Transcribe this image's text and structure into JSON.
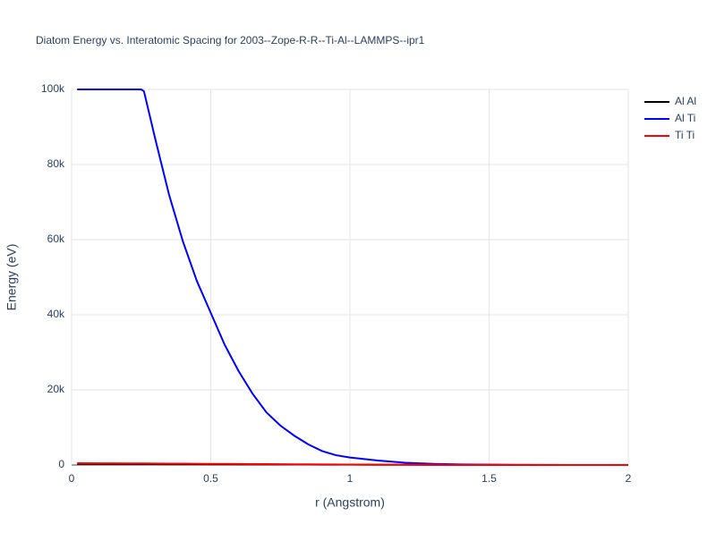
{
  "chart_data": {
    "type": "line",
    "title": "Diatom Energy vs. Interatomic Spacing for 2003--Zope-R-R--Ti-Al--LAMMPS--ipr1",
    "x_label": "r (Angstrom)",
    "y_label": "Energy (eV)",
    "x": [
      0.02,
      0.1,
      0.2,
      0.25,
      0.26,
      0.3,
      0.35,
      0.4,
      0.45,
      0.5,
      0.55,
      0.6,
      0.65,
      0.7,
      0.75,
      0.8,
      0.85,
      0.9,
      0.95,
      1,
      1.1,
      1.2,
      1.3,
      1.4,
      1.5,
      1.6,
      1.8,
      2
    ],
    "series": [
      {
        "name": "Al Al",
        "color": "#000000",
        "values": [
          300,
          280,
          260,
          250,
          245,
          235,
          220,
          210,
          195,
          185,
          170,
          160,
          150,
          140,
          125,
          115,
          105,
          95,
          85,
          75,
          60,
          45,
          35,
          25,
          18,
          12,
          5,
          1
        ]
      },
      {
        "name": "Al Ti",
        "color": "#0000ff",
        "values": [
          100000,
          100000,
          100000,
          100000,
          99500,
          87000,
          72000,
          59500,
          49000,
          40500,
          32000,
          25000,
          19000,
          14000,
          10500,
          7800,
          5500,
          3700,
          2600,
          2000,
          1200,
          600,
          300,
          150,
          80,
          40,
          10,
          0
        ]
      },
      {
        "name": "Ti Ti",
        "color": "#ff0000",
        "values": [
          480,
          460,
          430,
          410,
          405,
          390,
          370,
          350,
          330,
          310,
          290,
          270,
          250,
          230,
          210,
          190,
          170,
          150,
          135,
          120,
          95,
          75,
          55,
          40,
          30,
          20,
          8,
          2
        ]
      }
    ],
    "xlim": [
      0,
      2
    ],
    "xticks": [
      0,
      0.5,
      1,
      1.5,
      2
    ],
    "ylim": [
      0,
      100000
    ],
    "yticks": [
      0,
      {
        "value": 20000,
        "label": "20k"
      },
      {
        "value": 40000,
        "label": "40k"
      },
      {
        "value": 60000,
        "label": "60k"
      },
      {
        "value": 80000,
        "label": "80k"
      },
      {
        "value": 100000,
        "label": "100k"
      }
    ],
    "grid": true,
    "legend": "top-right"
  }
}
